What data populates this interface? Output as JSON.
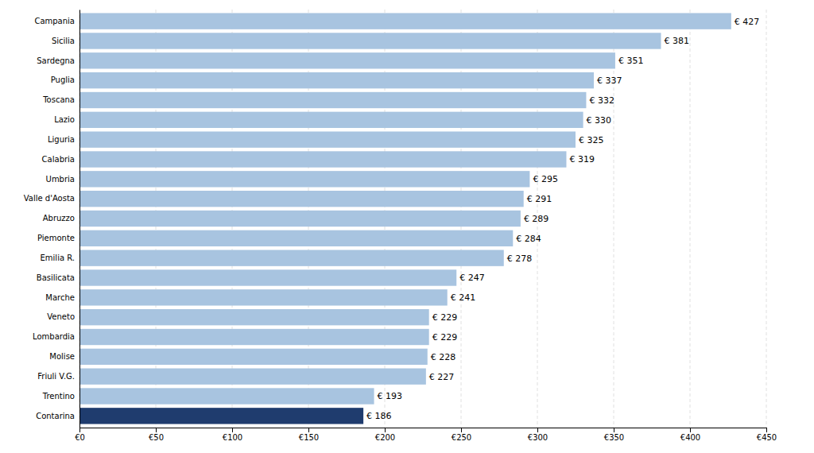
{
  "chart_data": {
    "type": "bar",
    "orientation": "horizontal",
    "categories": [
      "Contarina",
      "Trentino",
      "Friuli V.G.",
      "Molise",
      "Lombardia",
      "Veneto",
      "Marche",
      "Basilicata",
      "Emilia R.",
      "Piemonte",
      "Abruzzo",
      "Valle d'Aosta",
      "Umbria",
      "Calabria",
      "Liguria",
      "Lazio",
      "Toscana",
      "Puglia",
      "Sardegna",
      "Sicilia",
      "Campania"
    ],
    "values": [
      186,
      193,
      227,
      228,
      229,
      229,
      241,
      247,
      278,
      284,
      289,
      291,
      295,
      319,
      325,
      330,
      332,
      337,
      351,
      381,
      427
    ],
    "value_labels": [
      "€ 186",
      "€ 193",
      "€ 227",
      "€ 228",
      "€ 229",
      "€ 229",
      "€ 241",
      "€ 247",
      "€ 278",
      "€ 284",
      "€ 289",
      "€ 291",
      "€ 295",
      "€ 319",
      "€ 325",
      "€ 330",
      "€ 332",
      "€ 337",
      "€ 351",
      "€ 381",
      "€ 427"
    ],
    "data_labels": true,
    "colors": [
      "#1f3c6e",
      "#a8c4e0",
      "#a8c4e0",
      "#a8c4e0",
      "#a8c4e0",
      "#a8c4e0",
      "#a8c4e0",
      "#a8c4e0",
      "#a8c4e0",
      "#a8c4e0",
      "#a8c4e0",
      "#a8c4e0",
      "#a8c4e0",
      "#a8c4e0",
      "#a8c4e0",
      "#a8c4e0",
      "#a8c4e0",
      "#a8c4e0",
      "#a8c4e0",
      "#a8c4e0",
      "#a8c4e0"
    ],
    "xlim": [
      0,
      450
    ],
    "xticks": [
      {
        "value": 0,
        "label": "€0"
      },
      {
        "value": 50,
        "label": "€50"
      },
      {
        "value": 100,
        "label": "€100"
      },
      {
        "value": 150,
        "label": "€150"
      },
      {
        "value": 200,
        "label": "€200"
      },
      {
        "value": 250,
        "label": "€250"
      },
      {
        "value": 300,
        "label": "€300"
      },
      {
        "value": 350,
        "label": "€350"
      },
      {
        "value": 400,
        "label": "€400"
      },
      {
        "value": 450,
        "label": "€450"
      }
    ],
    "grid": true
  }
}
